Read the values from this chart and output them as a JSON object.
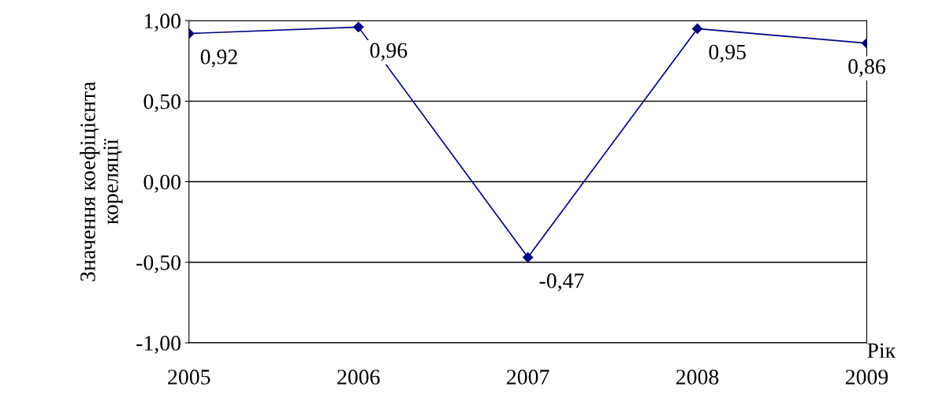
{
  "chart_data": {
    "type": "line",
    "xlabel": "Рік",
    "ylabel": "Значення коефіцієнта\nкореляції",
    "categories": [
      "2005",
      "2006",
      "2007",
      "2008",
      "2009"
    ],
    "series": [
      {
        "color": "#000080",
        "values": [
          0.92,
          0.96,
          -0.47,
          0.95,
          0.86
        ],
        "value_labels": [
          "0,92",
          "0,96",
          "-0,47",
          "0,95",
          "0,86"
        ]
      }
    ],
    "ylim": [
      -1,
      1
    ],
    "yticks": [
      {
        "value": -1,
        "label": "-1,00"
      },
      {
        "value": -0.5,
        "label": "-0,50"
      },
      {
        "value": 0,
        "label": "0,00"
      },
      {
        "value": 0.5,
        "label": "0,50"
      },
      {
        "value": 1,
        "label": "1,00"
      }
    ],
    "grid": "y",
    "marker": "diamond",
    "line_style": "solid",
    "legend": false
  }
}
